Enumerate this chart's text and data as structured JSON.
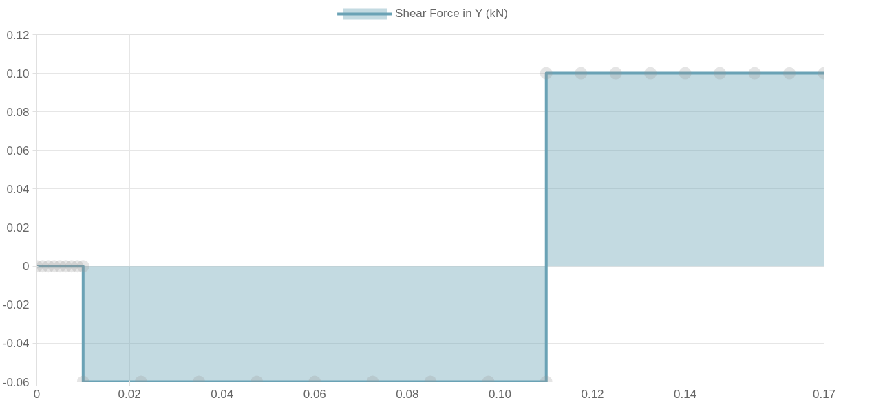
{
  "chart_data": {
    "type": "area",
    "x": [
      0,
      0.00125,
      0.0025,
      0.00375,
      0.005,
      0.00625,
      0.0075,
      0.00875,
      0.01,
      0.01,
      0.0225,
      0.035,
      0.0475,
      0.06,
      0.0725,
      0.085,
      0.0975,
      0.11,
      0.11,
      0.1175,
      0.125,
      0.1325,
      0.14,
      0.1475,
      0.155,
      0.1625,
      0.17
    ],
    "series": [
      {
        "name": "Shear Force in Y (kN)",
        "color": "#6aa2b5",
        "values": [
          0,
          0,
          0,
          0,
          0,
          0,
          0,
          0,
          0,
          -0.06,
          -0.06,
          -0.06,
          -0.06,
          -0.06,
          -0.06,
          -0.06,
          -0.06,
          -0.06,
          0.1,
          0.1,
          0.1,
          0.1,
          0.1,
          0.1,
          0.1,
          0.1,
          0.1
        ]
      }
    ],
    "xlim": [
      0,
      0.17
    ],
    "xticks": [
      0,
      0.02,
      0.04,
      0.06,
      0.08,
      {
        "value": 0.1,
        "label": "0.10"
      },
      0.12,
      0.14,
      0.17
    ],
    "ylim": [
      -0.06,
      0.12
    ],
    "yticks": [
      {
        "value": -0.06,
        "label": "-0.06"
      },
      {
        "value": -0.04,
        "label": "-0.04"
      },
      {
        "value": -0.02,
        "label": "-0.02"
      },
      0,
      0.02,
      0.04,
      0.06,
      0.08,
      {
        "value": 0.1,
        "label": "0.10"
      },
      0.12
    ],
    "grid": true,
    "legend": "top",
    "marker": "circle",
    "line_style": "solid"
  }
}
